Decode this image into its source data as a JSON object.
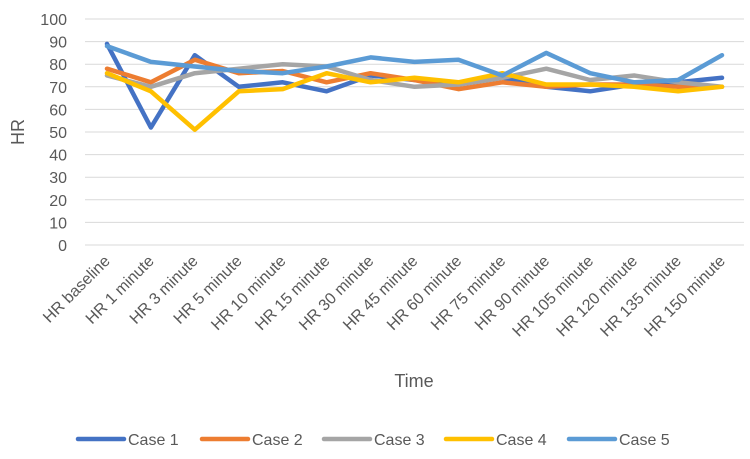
{
  "chart_data": {
    "type": "line",
    "title": "",
    "xlabel": "Time",
    "ylabel": "HR",
    "ylim": [
      0,
      100
    ],
    "yticks": [
      0,
      10,
      20,
      30,
      40,
      50,
      60,
      70,
      80,
      90,
      100
    ],
    "grid": true,
    "legend_position": "bottom",
    "categories": [
      "HR baseline",
      "HR 1 minute",
      "HR 3 minute",
      "HR 5 minute",
      "HR 10 minute",
      "HR 15 minute",
      "HR 30 minute",
      "HR 45 minute",
      "HR 60 minute",
      "HR 75 minute",
      "HR 90 minute",
      "HR 105 minute",
      "HR 120 minute",
      "HR 135 minute",
      "HR 150 minute"
    ],
    "series": [
      {
        "name": "Case 1",
        "color": "#4472C4",
        "values": [
          89,
          52,
          84,
          70,
          72,
          68,
          75,
          73,
          71,
          74,
          70,
          68,
          71,
          72,
          74
        ]
      },
      {
        "name": "Case 2",
        "color": "#ED7D31",
        "values": [
          78,
          72,
          82,
          76,
          77,
          72,
          76,
          73,
          69,
          72,
          70,
          71,
          71,
          70,
          70
        ]
      },
      {
        "name": "Case 3",
        "color": "#A5A5A5",
        "values": [
          75,
          70,
          76,
          78,
          80,
          79,
          73,
          70,
          71,
          74,
          78,
          73,
          75,
          72,
          70
        ]
      },
      {
        "name": "Case 4",
        "color": "#FFC000",
        "values": [
          76,
          68,
          51,
          68,
          69,
          76,
          72,
          74,
          72,
          76,
          71,
          71,
          70,
          68,
          70
        ]
      },
      {
        "name": "Case 5",
        "color": "#5B9BD5",
        "values": [
          88,
          81,
          79,
          77,
          76,
          79,
          83,
          81,
          82,
          75,
          85,
          76,
          72,
          73,
          84
        ]
      }
    ]
  }
}
